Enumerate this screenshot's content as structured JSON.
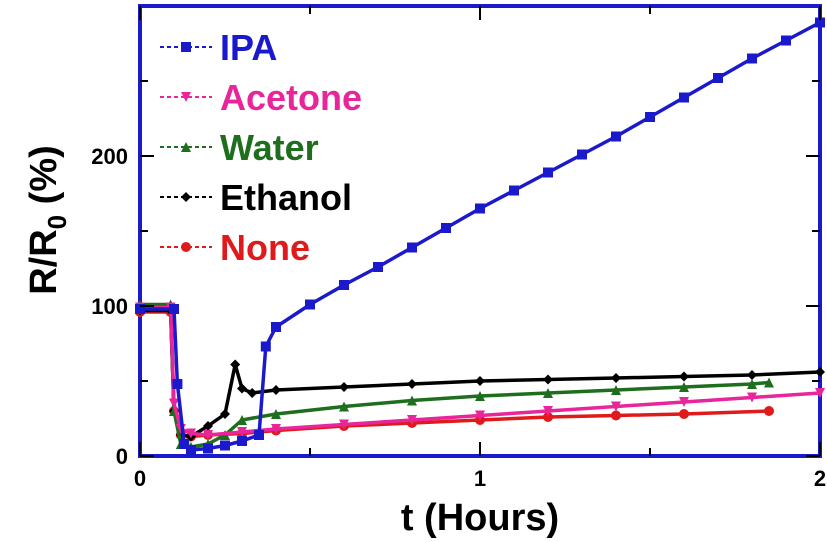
{
  "chart_data": {
    "type": "line",
    "title": "",
    "xlabel": "t (Hours)",
    "ylabel": {
      "main": "R/R",
      "subscript": "0",
      "unit": " (%)"
    },
    "xlim": [
      0,
      2
    ],
    "ylim": [
      0,
      300
    ],
    "xticks": [
      "0",
      "1",
      "2"
    ],
    "yticks": [
      "0",
      "100",
      "200"
    ],
    "x_tick_values": [
      0,
      0.5,
      1,
      1.5,
      2
    ],
    "y_tick_values": [
      0,
      50,
      100,
      150,
      200,
      250
    ],
    "grid": false,
    "legend_position": "top-left",
    "series": [
      {
        "name": "IPA",
        "color": "#1a1acc",
        "marker": "square",
        "x": [
          0,
          0.1,
          0.11,
          0.13,
          0.15,
          0.2,
          0.25,
          0.3,
          0.35,
          0.37,
          0.4,
          0.5,
          0.6,
          0.7,
          0.8,
          0.9,
          1.0,
          1.1,
          1.2,
          1.3,
          1.4,
          1.5,
          1.6,
          1.7,
          1.8,
          1.9,
          2.0
        ],
        "y": [
          98,
          98,
          48,
          8,
          4,
          5,
          7,
          10,
          14,
          73,
          86,
          101,
          114,
          126,
          139,
          152,
          165,
          177,
          189,
          201,
          213,
          226,
          239,
          252,
          265,
          277,
          289
        ]
      },
      {
        "name": "Acetone",
        "color": "#e8259a",
        "marker": "triangle-down",
        "x": [
          0,
          0.09,
          0.1,
          0.12,
          0.15,
          0.2,
          0.3,
          0.4,
          0.6,
          0.8,
          1.0,
          1.2,
          1.4,
          1.6,
          1.8,
          2.0
        ],
        "y": [
          99,
          99,
          35,
          18,
          15,
          14,
          16,
          18,
          21,
          24,
          27,
          30,
          33,
          36,
          39,
          42
        ]
      },
      {
        "name": "Water",
        "color": "#1e6e1e",
        "marker": "triangle-up",
        "x": [
          0,
          0.09,
          0.1,
          0.12,
          0.15,
          0.2,
          0.25,
          0.3,
          0.4,
          0.6,
          0.8,
          1.0,
          1.2,
          1.4,
          1.6,
          1.8,
          1.85
        ],
        "y": [
          101,
          101,
          30,
          8,
          6,
          8,
          14,
          24,
          28,
          33,
          37,
          40,
          42,
          44,
          46,
          48,
          49
        ]
      },
      {
        "name": "Ethanol",
        "color": "#000000",
        "marker": "diamond",
        "x": [
          0,
          0.09,
          0.1,
          0.12,
          0.15,
          0.2,
          0.25,
          0.28,
          0.3,
          0.33,
          0.4,
          0.6,
          0.8,
          1.0,
          1.2,
          1.4,
          1.6,
          1.8,
          2.0
        ],
        "y": [
          97,
          97,
          30,
          14,
          13,
          20,
          28,
          61,
          45,
          42,
          44,
          46,
          48,
          50,
          51,
          52,
          53,
          54,
          56
        ]
      },
      {
        "name": "None",
        "color": "#e01a1a",
        "marker": "circle",
        "x": [
          0,
          0.09,
          0.1,
          0.12,
          0.15,
          0.2,
          0.3,
          0.4,
          0.6,
          0.8,
          1.0,
          1.2,
          1.4,
          1.6,
          1.85
        ],
        "y": [
          96,
          96,
          30,
          14,
          13,
          14,
          15,
          17,
          20,
          22,
          24,
          26,
          27,
          28,
          30
        ]
      }
    ]
  }
}
